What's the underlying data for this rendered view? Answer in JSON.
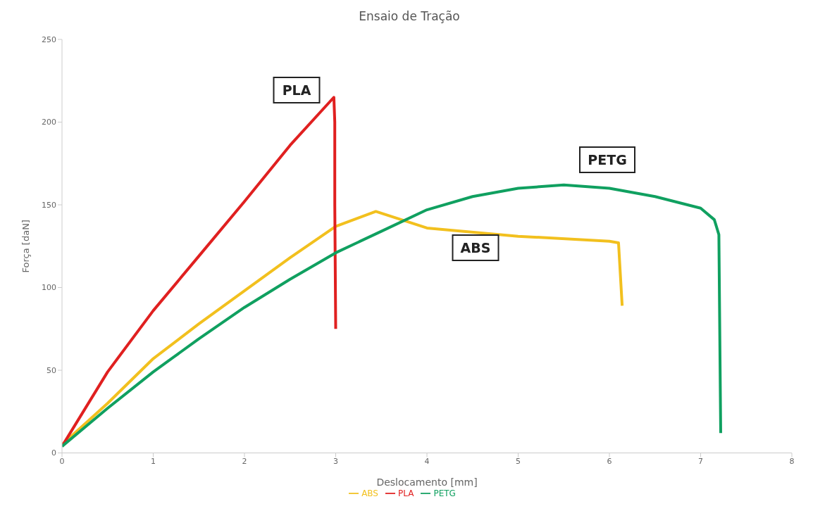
{
  "chart_data": {
    "type": "line",
    "title": "Ensaio de Tração",
    "xlabel": "Deslocamento [mm]",
    "ylabel": "Força [daN]",
    "xlim": [
      0,
      8
    ],
    "xticks": [
      0,
      1,
      2,
      3,
      4,
      5,
      6,
      7,
      8
    ],
    "ylim": [
      0,
      250
    ],
    "yticks": [
      0,
      50,
      100,
      150,
      200,
      250
    ],
    "grid": false,
    "legend": "bottom",
    "marker": "none",
    "series": [
      {
        "name": "ABS",
        "color": "#f2c01e",
        "x": [
          0,
          0.5,
          1,
          1.5,
          2,
          2.5,
          3,
          3.44,
          4,
          5,
          6,
          6.1,
          6.14
        ],
        "values": [
          5,
          30,
          57,
          78,
          98,
          118,
          137,
          146,
          136,
          131,
          128,
          127,
          89
        ]
      },
      {
        "name": "PLA",
        "color": "#e02020",
        "x": [
          0,
          0.5,
          1,
          1.5,
          2,
          2.5,
          2.98,
          2.99,
          2.99,
          3.0
        ],
        "values": [
          4,
          49,
          86,
          119,
          152,
          186,
          215,
          200,
          150,
          75
        ]
      },
      {
        "name": "PETG",
        "color": "#10a060",
        "x": [
          0,
          0.5,
          1,
          1.5,
          2,
          2.5,
          3,
          3.5,
          4,
          4.5,
          5,
          5.5,
          6,
          6.5,
          7,
          7.15,
          7.2,
          7.22
        ],
        "values": [
          4,
          27,
          49,
          69,
          88,
          105,
          121,
          134,
          147,
          155,
          160,
          162,
          160,
          155,
          148,
          141,
          132,
          12
        ]
      }
    ],
    "annotations": [
      "PLA",
      "PETG",
      "ABS"
    ]
  }
}
